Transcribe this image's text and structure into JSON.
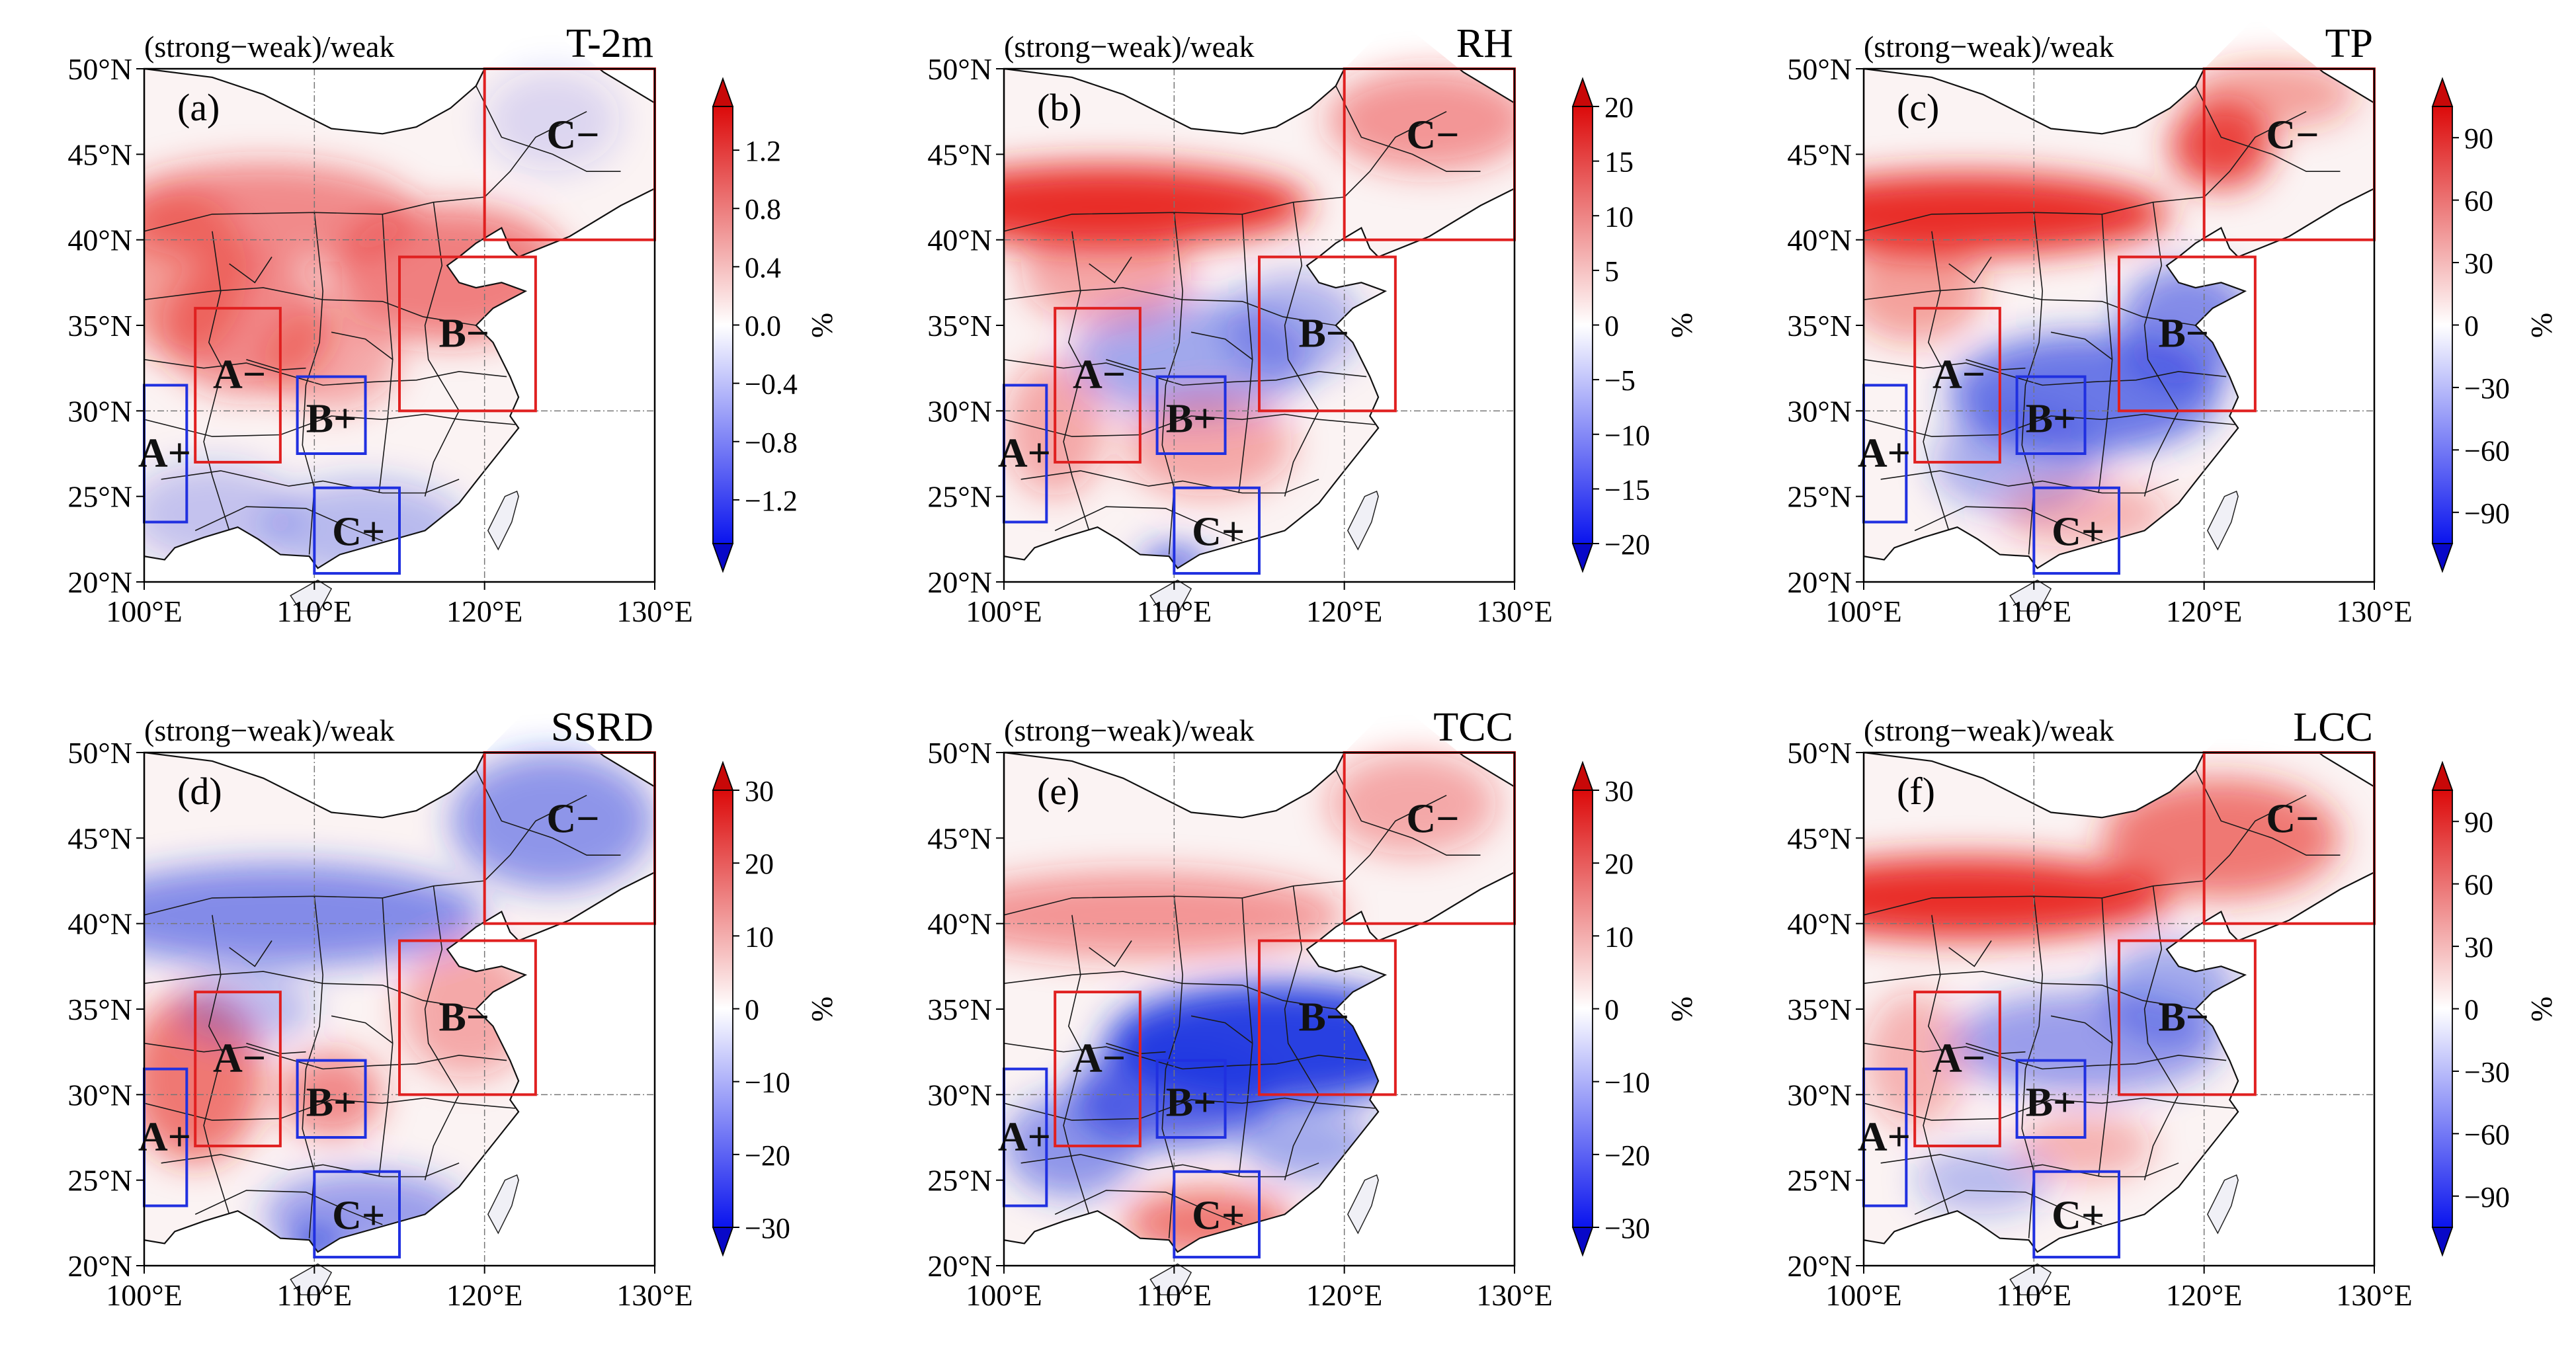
{
  "figure": {
    "common_title": "(strong−weak)/weak",
    "unit_label": "%",
    "lat_ticks": [
      "50°N",
      "45°N",
      "40°N",
      "35°N",
      "30°N",
      "25°N",
      "20°N"
    ],
    "lon_ticks": [
      "100°E",
      "110°E",
      "120°E",
      "130°E"
    ],
    "extent": {
      "lon": [
        100,
        130
      ],
      "lat": [
        20,
        50
      ]
    },
    "colors": {
      "positive": "#e8231f",
      "negative": "#1f35e0",
      "neutral": "#ffffff",
      "box_positive": "#e02020",
      "box_negative": "#2030e0"
    }
  },
  "region_labels": {
    "A_minus": "A−",
    "A_plus": "A+",
    "B_minus": "B−",
    "B_plus": "B+",
    "C_minus": "C−",
    "C_plus": "C+"
  },
  "region_boxes": {
    "A_minus": {
      "lon": [
        103,
        108
      ],
      "lat": [
        27,
        36
      ],
      "sign": "negative-label-red-box"
    },
    "A_plus": {
      "lon": [
        100,
        102.5
      ],
      "lat": [
        23.5,
        31.5
      ]
    },
    "B_minus": {
      "lon": [
        115,
        123
      ],
      "lat": [
        30,
        39
      ]
    },
    "B_plus": {
      "lon": [
        109,
        113
      ],
      "lat": [
        27.5,
        32
      ]
    },
    "C_minus": {
      "lon": [
        120,
        130
      ],
      "lat": [
        40,
        50
      ]
    },
    "C_plus": {
      "lon": [
        110,
        115
      ],
      "lat": [
        20.5,
        25.5
      ]
    }
  },
  "panels": [
    {
      "id": "a",
      "letter": "(a)",
      "variable": "T-2m",
      "colorbar_ticks": [
        "1.2",
        "0.8",
        "0.4",
        "0.0",
        "−0.4",
        "−0.8",
        "−1.2"
      ],
      "cbar_range": [
        -1.5,
        1.5
      ]
    },
    {
      "id": "b",
      "letter": "(b)",
      "variable": "RH",
      "colorbar_ticks": [
        "20",
        "15",
        "10",
        "5",
        "0",
        "−5",
        "−10",
        "−15",
        "−20"
      ],
      "cbar_range": [
        -20,
        20
      ]
    },
    {
      "id": "c",
      "letter": "(c)",
      "variable": "TP",
      "colorbar_ticks": [
        "90",
        "60",
        "30",
        "0",
        "−30",
        "−60",
        "−90"
      ],
      "cbar_range": [
        -105,
        105
      ]
    },
    {
      "id": "d",
      "letter": "(d)",
      "variable": "SSRD",
      "colorbar_ticks": [
        "30",
        "20",
        "10",
        "0",
        "−10",
        "−20",
        "−30"
      ],
      "cbar_range": [
        -30,
        30
      ]
    },
    {
      "id": "e",
      "letter": "(e)",
      "variable": "TCC",
      "colorbar_ticks": [
        "30",
        "20",
        "10",
        "0",
        "−10",
        "−20",
        "−30"
      ],
      "cbar_range": [
        -30,
        30
      ]
    },
    {
      "id": "f",
      "letter": "(f)",
      "variable": "LCC",
      "colorbar_ticks": [
        "90",
        "60",
        "30",
        "0",
        "−30",
        "−60",
        "−90"
      ],
      "cbar_range": [
        -105,
        105
      ]
    }
  ]
}
